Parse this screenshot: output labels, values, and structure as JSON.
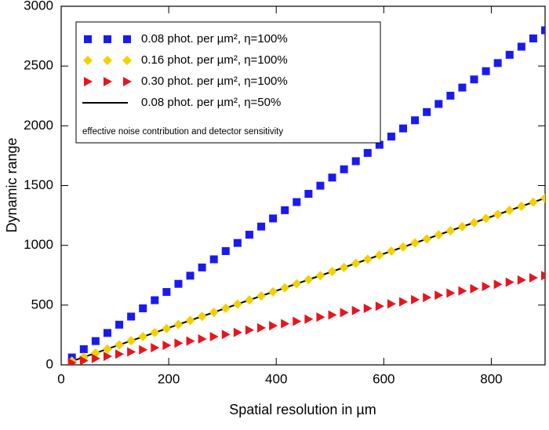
{
  "chart_data": {
    "type": "scatter",
    "x_label": "Spatial resolution in µm",
    "y_label": "Dynamic range",
    "xlim": [
      0,
      900
    ],
    "ylim": [
      0,
      3000
    ],
    "xticks": [
      0,
      200,
      400,
      600,
      800
    ],
    "yticks": [
      0,
      500,
      1000,
      1500,
      2000,
      2500,
      3000
    ],
    "annotation": "effective noise contribution and detector sensitivity",
    "series": [
      {
        "name": "0.08 phot. per µm², η=100%",
        "color": "#1a1af0",
        "marker": "square",
        "x": [
          20,
          42,
          64,
          86,
          108,
          130,
          152,
          174,
          196,
          218,
          240,
          262,
          284,
          306,
          328,
          350,
          372,
          394,
          416,
          438,
          460,
          482,
          504,
          526,
          548,
          570,
          592,
          614,
          636,
          658,
          680,
          702,
          724,
          746,
          768,
          790,
          812,
          834,
          856,
          878,
          900
        ],
        "values": [
          62,
          131,
          199,
          267,
          336,
          404,
          473,
          541,
          610,
          678,
          746,
          815,
          883,
          952,
          1020,
          1089,
          1157,
          1225,
          1294,
          1362,
          1431,
          1499,
          1567,
          1636,
          1704,
          1773,
          1841,
          1910,
          1978,
          2046,
          2115,
          2183,
          2252,
          2320,
          2388,
          2457,
          2525,
          2594,
          2662,
          2731,
          2799
        ]
      },
      {
        "name": "0.16 phot. per µm², η=100%",
        "color": "#f5d000",
        "marker": "diamond",
        "x": [
          20,
          42,
          64,
          86,
          108,
          130,
          152,
          174,
          196,
          218,
          240,
          262,
          284,
          306,
          328,
          350,
          372,
          394,
          416,
          438,
          460,
          482,
          504,
          526,
          548,
          570,
          592,
          614,
          636,
          658,
          680,
          702,
          724,
          746,
          768,
          790,
          812,
          834,
          856,
          878,
          900
        ],
        "values": [
          31,
          65,
          99,
          133,
          167,
          202,
          236,
          270,
          304,
          338,
          372,
          406,
          440,
          474,
          508,
          543,
          577,
          611,
          645,
          679,
          713,
          747,
          781,
          815,
          849,
          884,
          918,
          952,
          986,
          1020,
          1054,
          1088,
          1122,
          1156,
          1190,
          1225,
          1259,
          1293,
          1327,
          1361,
          1395
        ]
      },
      {
        "name": "0.30 phot. per µm², η=100%",
        "color": "#e8141e",
        "marker": "triangle",
        "x": [
          20,
          42,
          64,
          86,
          108,
          130,
          152,
          174,
          196,
          218,
          240,
          262,
          284,
          306,
          328,
          350,
          372,
          394,
          416,
          438,
          460,
          482,
          504,
          526,
          548,
          570,
          592,
          614,
          636,
          658,
          680,
          702,
          724,
          746,
          768,
          790,
          812,
          834,
          856,
          878,
          900
        ],
        "values": [
          17,
          35,
          53,
          71,
          90,
          108,
          126,
          144,
          163,
          181,
          199,
          217,
          236,
          254,
          272,
          291,
          309,
          327,
          345,
          364,
          382,
          400,
          418,
          437,
          455,
          473,
          491,
          510,
          528,
          546,
          564,
          583,
          601,
          619,
          637,
          656,
          674,
          692,
          710,
          729,
          747
        ]
      },
      {
        "name": "0.08 phot. per µm², η=50%",
        "color": "#000000",
        "marker": "line",
        "x": [
          20,
          900
        ],
        "values": [
          31,
          1395
        ]
      }
    ]
  }
}
